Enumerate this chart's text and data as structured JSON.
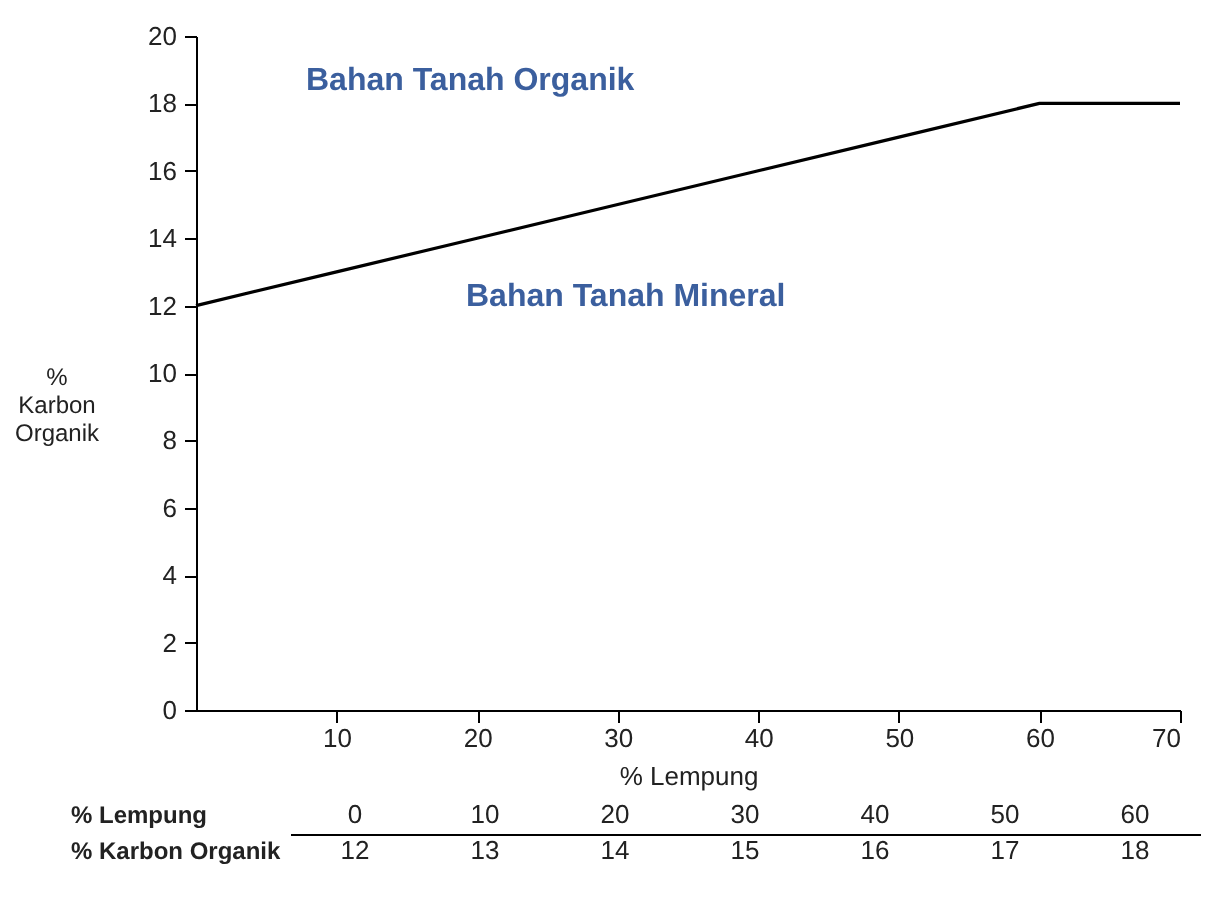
{
  "chart_data": [
    {
      "type": "line",
      "xlabel": "% Lempung",
      "ylabel": "% Karbon Organik",
      "x": [
        0,
        10,
        20,
        30,
        40,
        50,
        60,
        70
      ],
      "series": [
        {
          "color": "#000000",
          "values": [
            12,
            13,
            14,
            15,
            16,
            17,
            18,
            18
          ]
        }
      ],
      "xlim": [
        0,
        70
      ],
      "xticks": [
        10,
        20,
        30,
        40,
        50,
        60,
        70
      ],
      "ylim": [
        0,
        20
      ],
      "yticks": [
        0,
        2,
        4,
        6,
        8,
        10,
        12,
        14,
        16,
        18,
        20
      ],
      "annotations": [
        "Bahan Tanah Organik",
        "Bahan Tanah Mineral"
      ]
    },
    {
      "type": "heatmap",
      "data_labels": true,
      "xlabel": "% Lempung",
      "categories": [
        "0",
        "10",
        "20",
        "30",
        "40",
        "50",
        "60"
      ],
      "y_categories": [
        "% Karbon Organik"
      ],
      "cells": [
        [
          12,
          13,
          14,
          15,
          16,
          17,
          18
        ]
      ]
    }
  ]
}
